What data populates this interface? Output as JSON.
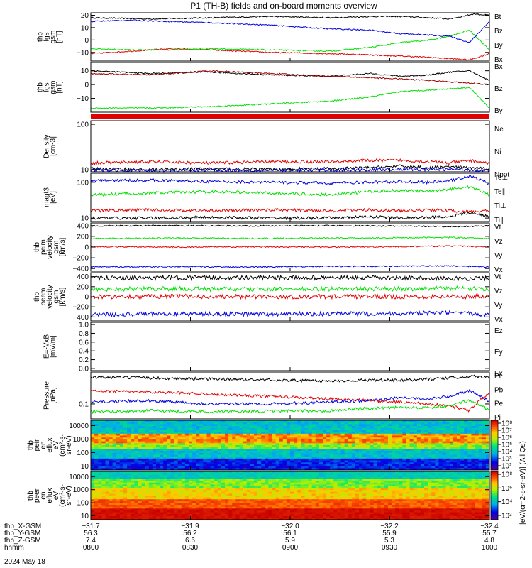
{
  "title": "P1 (TH-B) fields and on-board moments overview",
  "footer": {
    "rows": [
      {
        "label": "thb_X-GSM",
        "values": [
          "−31.7",
          "−31.9",
          "−32.0",
          "−32.2",
          "−32.4"
        ]
      },
      {
        "label": "thb_Y-GSM",
        "values": [
          "56.3",
          "56.2",
          "56.1",
          "55.9",
          "55.7"
        ]
      },
      {
        "label": "thb_Z-GSM",
        "values": [
          "7.4",
          "6.6",
          "5.9",
          "5.3",
          "4.8"
        ]
      },
      {
        "label": "hhmm",
        "values": [
          "0800",
          "0830",
          "0900",
          "0930",
          "1000"
        ]
      }
    ],
    "date": "2024 May 18"
  },
  "colorbar": {
    "label": "[eV/(cm2-s-sr-eV)] (All Qs)",
    "upper_ticks": [
      "10⁸",
      "10⁷",
      "10⁶",
      "10⁵",
      "10⁴",
      "10³",
      "10²"
    ],
    "lower_ticks": [
      "10⁸",
      "10⁶",
      "10⁴",
      "10²"
    ]
  },
  "colors": {
    "black": "#000000",
    "red": "#e00000",
    "green": "#00e000",
    "blue": "#0000e0",
    "darkred": "#a00000"
  },
  "chart_data": [
    {
      "type": "line",
      "id": "p1",
      "ylabel": [
        "thb",
        "fgs",
        "gsm",
        "[nT]"
      ],
      "ylim": [
        -17,
        22
      ],
      "ticks": [
        "20",
        "10",
        "0",
        "−10"
      ],
      "tick_values": [
        20,
        10,
        0,
        -10
      ],
      "series": [
        {
          "name": "Bt",
          "color": "#000000",
          "x": [
            0,
            0.15,
            0.3,
            0.45,
            0.6,
            0.7,
            0.78,
            0.85,
            0.9,
            0.93,
            0.96,
            1
          ],
          "y": [
            18,
            17,
            18,
            19,
            18,
            19,
            19,
            18,
            17,
            19,
            21,
            20
          ]
        },
        {
          "name": "Bz",
          "color": "#e00000",
          "x": [
            0,
            0.1,
            0.2,
            0.3,
            0.45,
            0.6,
            0.7,
            0.78,
            0.85,
            0.9,
            0.95,
            1
          ],
          "y": [
            -11,
            -9,
            -7,
            -8,
            -10,
            -11,
            -12,
            -13,
            -14,
            -15,
            -16,
            -11
          ]
        },
        {
          "name": "By",
          "color": "#00e000",
          "x": [
            0,
            0.1,
            0.2,
            0.3,
            0.45,
            0.6,
            0.7,
            0.78,
            0.85,
            0.9,
            0.95,
            1
          ],
          "y": [
            -7,
            -8,
            -8,
            -7,
            -8,
            -9,
            -6,
            -2,
            0,
            3,
            8,
            -8
          ]
        },
        {
          "name": "Bx",
          "color": "#0000e0",
          "x": [
            0,
            0.1,
            0.2,
            0.3,
            0.45,
            0.6,
            0.7,
            0.78,
            0.85,
            0.9,
            0.95,
            1
          ],
          "y": [
            15,
            16,
            15,
            14,
            12,
            9,
            8,
            5,
            4,
            3,
            -2,
            15
          ]
        }
      ]
    },
    {
      "type": "line",
      "id": "p2",
      "ylabel": [
        "thb",
        "fgs",
        "gsm",
        "[nT]"
      ],
      "ylim": [
        -20,
        16
      ],
      "ticks": [
        "10",
        "0",
        "−10"
      ],
      "tick_values": [
        10,
        0,
        -10
      ],
      "series": [
        {
          "name": "Bx",
          "color": "#000000",
          "x": [
            0,
            0.15,
            0.3,
            0.45,
            0.6,
            0.7,
            0.78,
            0.85,
            0.9,
            0.95,
            1
          ],
          "y": [
            10,
            8,
            9,
            7,
            6,
            8,
            6,
            7,
            9,
            10,
            3
          ]
        },
        {
          "name": "Bz",
          "color": "#a00000",
          "x": [
            0,
            0.15,
            0.3,
            0.45,
            0.6,
            0.7,
            0.78,
            0.85,
            0.9,
            0.95,
            1
          ],
          "y": [
            8,
            7,
            10,
            8,
            6,
            5,
            4,
            3,
            2,
            1,
            0
          ]
        },
        {
          "name": "By",
          "color": "#00e000",
          "x": [
            0,
            0.15,
            0.3,
            0.45,
            0.6,
            0.7,
            0.78,
            0.85,
            0.9,
            0.95,
            1
          ],
          "y": [
            -17,
            -17,
            -16,
            -14,
            -12,
            -9,
            -5,
            -4,
            -3,
            -2,
            -17
          ]
        }
      ]
    },
    {
      "type": "line",
      "id": "p3",
      "ylabel": [
        "Density",
        "[cm-3]"
      ],
      "yscale": "log",
      "ylim": [
        9,
        120
      ],
      "ticks": [
        "100",
        "10"
      ],
      "tick_values": [
        100,
        10
      ],
      "series": [
        {
          "name": "Ne",
          "color": "#e00000",
          "x": [
            0,
            0.15,
            0.3,
            0.45,
            0.6,
            0.7,
            0.78,
            0.85,
            0.9,
            0.95,
            1
          ],
          "y": [
            14,
            15,
            14,
            15,
            15,
            16,
            16,
            15,
            14,
            16,
            14
          ]
        },
        {
          "name": "Ni",
          "color": "#000000",
          "x": [
            0,
            0.15,
            0.3,
            0.45,
            0.6,
            0.7,
            0.78,
            0.85,
            0.9,
            0.95,
            1
          ],
          "y": [
            10.5,
            10,
            10.5,
            10.2,
            10.5,
            11,
            12,
            11,
            11.5,
            11,
            10.5
          ]
        },
        {
          "name": "Npot",
          "color": "#0000e0",
          "x": [
            0,
            0.15,
            0.3,
            0.45,
            0.6,
            0.7,
            0.78,
            0.85,
            0.9,
            0.95,
            1
          ],
          "y": [
            10,
            9.6,
            9.8,
            9.7,
            9.8,
            10,
            10.3,
            10.1,
            10.2,
            10,
            9.8
          ]
        }
      ]
    },
    {
      "type": "line",
      "id": "p4",
      "ylabel": [
        "magt3",
        "[eV]"
      ],
      "yscale": "log",
      "ylim": [
        8,
        180
      ],
      "ticks": [
        "100",
        "10"
      ],
      "tick_values": [
        100,
        10
      ],
      "series": [
        {
          "name": "Te⊥",
          "color": "#e00000",
          "x": [
            0,
            0.15,
            0.3,
            0.45,
            0.6,
            0.7,
            0.78,
            0.85,
            0.9,
            0.95,
            1
          ],
          "y": [
            16,
            17,
            16,
            17,
            16,
            17,
            16,
            17,
            16,
            15,
            16
          ]
        },
        {
          "name": "Te∥",
          "color": "#000000",
          "x": [
            0,
            0.15,
            0.3,
            0.45,
            0.6,
            0.7,
            0.78,
            0.85,
            0.9,
            0.95,
            1
          ],
          "y": [
            10,
            10,
            10.5,
            10,
            10,
            11,
            10,
            10.5,
            11,
            14,
            11
          ]
        },
        {
          "name": "Ti⊥",
          "color": "#0000e0",
          "x": [
            0,
            0.15,
            0.3,
            0.45,
            0.6,
            0.7,
            0.78,
            0.85,
            0.9,
            0.95,
            1
          ],
          "y": [
            110,
            115,
            105,
            100,
            95,
            100,
            105,
            100,
            110,
            150,
            90
          ]
        },
        {
          "name": "Ti∥",
          "color": "#00e000",
          "x": [
            0,
            0.15,
            0.3,
            0.45,
            0.6,
            0.7,
            0.78,
            0.85,
            0.9,
            0.95,
            1
          ],
          "y": [
            45,
            50,
            55,
            50,
            45,
            55,
            60,
            55,
            65,
            75,
            45
          ]
        }
      ]
    },
    {
      "type": "line",
      "id": "p5",
      "ylabel": [
        "thb",
        "peim",
        "velocity",
        "gsm",
        "[km/s]"
      ],
      "ylim": [
        -450,
        450
      ],
      "ticks": [
        "400",
        "200",
        "0",
        "−200",
        "−400"
      ],
      "tick_values": [
        400,
        200,
        0,
        -200,
        -400
      ],
      "series": [
        {
          "name": "Vt",
          "color": "#000000",
          "x": [
            0,
            0.2,
            0.4,
            0.6,
            0.8,
            0.9,
            1
          ],
          "y": [
            395,
            400,
            395,
            400,
            390,
            380,
            395
          ]
        },
        {
          "name": "Vz",
          "color": "#e00000",
          "x": [
            0,
            0.2,
            0.4,
            0.6,
            0.8,
            0.9,
            1
          ],
          "y": [
            10,
            0,
            5,
            0,
            10,
            20,
            5
          ]
        },
        {
          "name": "Vy",
          "color": "#00e000",
          "x": [
            0,
            0.2,
            0.4,
            0.6,
            0.8,
            0.9,
            1
          ],
          "y": [
            160,
            170,
            160,
            170,
            175,
            180,
            160
          ]
        },
        {
          "name": "Vx",
          "color": "#0000e0",
          "x": [
            0,
            0.2,
            0.4,
            0.6,
            0.8,
            0.9,
            1
          ],
          "y": [
            -370,
            -365,
            -370,
            -360,
            -355,
            -350,
            -370
          ]
        }
      ]
    },
    {
      "type": "line",
      "id": "p6",
      "ylabel": [
        "thb",
        "peem",
        "velocity",
        "gsm",
        "[km/s]"
      ],
      "ylim": [
        -480,
        480
      ],
      "ticks": [
        "400",
        "200",
        "0",
        "−200",
        "−400"
      ],
      "tick_values": [
        400,
        200,
        0,
        -200,
        -400
      ],
      "series": [
        {
          "name": "Vt",
          "color": "#000000",
          "x": [
            0,
            0.2,
            0.4,
            0.6,
            0.8,
            0.9,
            1
          ],
          "y": [
            370,
            380,
            375,
            380,
            370,
            360,
            370
          ]
        },
        {
          "name": "Vz",
          "color": "#e00000",
          "x": [
            0,
            0.2,
            0.4,
            0.6,
            0.8,
            0.9,
            1
          ],
          "y": [
            0,
            10,
            0,
            5,
            0,
            10,
            0
          ]
        },
        {
          "name": "Vy",
          "color": "#00e000",
          "x": [
            0,
            0.2,
            0.4,
            0.6,
            0.8,
            0.9,
            1
          ],
          "y": [
            150,
            160,
            150,
            155,
            160,
            170,
            150
          ]
        },
        {
          "name": "Vx",
          "color": "#0000e0",
          "x": [
            0,
            0.2,
            0.4,
            0.6,
            0.8,
            0.9,
            1
          ],
          "y": [
            -350,
            -340,
            -345,
            -340,
            -330,
            -320,
            -350
          ]
        }
      ]
    },
    {
      "type": "line",
      "id": "p7",
      "ylabel": [
        "E=-VxB",
        "[mV/m]"
      ],
      "ylim": [
        -0.05,
        1.05
      ],
      "ticks": [
        "1.0",
        "0.8",
        "0.6",
        "0.4",
        "0.2",
        "0.0"
      ],
      "tick_values": [
        1.0,
        0.8,
        0.6,
        0.4,
        0.2,
        0.0
      ],
      "series": [
        {
          "name": "Ez",
          "color": "#e00000",
          "x": [],
          "y": []
        },
        {
          "name": "Ey",
          "color": "#00e000",
          "x": [],
          "y": []
        },
        {
          "name": "Ex",
          "color": "#0000e0",
          "x": [],
          "y": []
        }
      ]
    },
    {
      "type": "line",
      "id": "p8",
      "ylabel": [
        "Pressure",
        "[nPa]"
      ],
      "yscale": "log",
      "ylim": [
        0.045,
        0.55
      ],
      "ticks": [
        "0.1"
      ],
      "tick_values": [
        0.1
      ],
      "series": [
        {
          "name": "Pt",
          "color": "#000000",
          "x": [
            0,
            0.15,
            0.3,
            0.45,
            0.6,
            0.7,
            0.78,
            0.85,
            0.9,
            0.95,
            1
          ],
          "y": [
            0.42,
            0.4,
            0.38,
            0.36,
            0.34,
            0.36,
            0.35,
            0.38,
            0.4,
            0.44,
            0.42
          ]
        },
        {
          "name": "Pb",
          "color": "#e00000",
          "x": [
            0,
            0.15,
            0.3,
            0.45,
            0.6,
            0.7,
            0.78,
            0.85,
            0.9,
            0.95,
            1
          ],
          "y": [
            0.2,
            0.19,
            0.17,
            0.15,
            0.13,
            0.12,
            0.11,
            0.1,
            0.09,
            0.07,
            0.17
          ]
        },
        {
          "name": "Pe",
          "color": "#00e000",
          "x": [
            0,
            0.15,
            0.3,
            0.45,
            0.6,
            0.7,
            0.78,
            0.85,
            0.9,
            0.95,
            1
          ],
          "y": [
            0.065,
            0.07,
            0.066,
            0.068,
            0.07,
            0.08,
            0.085,
            0.082,
            0.09,
            0.12,
            0.07
          ]
        },
        {
          "name": "Pi",
          "color": "#0000e0",
          "x": [
            0,
            0.15,
            0.3,
            0.45,
            0.6,
            0.7,
            0.78,
            0.85,
            0.9,
            0.95,
            1
          ],
          "y": [
            0.11,
            0.12,
            0.1,
            0.1,
            0.11,
            0.12,
            0.14,
            0.13,
            0.15,
            0.2,
            0.11
          ]
        }
      ]
    },
    {
      "type": "heatmap",
      "id": "p9",
      "ylabel": [
        "thb",
        "peir",
        "en",
        "eflux",
        "eV",
        "(cm²-s-",
        "sr-eV)"
      ],
      "yscale": "log",
      "ylim": [
        5,
        25000
      ],
      "ticks": [
        "10000",
        "1000",
        "100",
        "10"
      ],
      "tick_values": [
        10000,
        1000,
        100,
        10
      ]
    },
    {
      "type": "heatmap",
      "id": "p10",
      "ylabel": [
        "thb",
        "peer",
        "en",
        "eflux",
        "eV",
        "(cm²-s-",
        "sr-eV)"
      ],
      "yscale": "log",
      "ylim": [
        5,
        25000
      ],
      "ticks": [
        "10000",
        "1000",
        "100",
        "10"
      ],
      "tick_values": [
        10000,
        1000,
        100,
        10
      ]
    }
  ]
}
